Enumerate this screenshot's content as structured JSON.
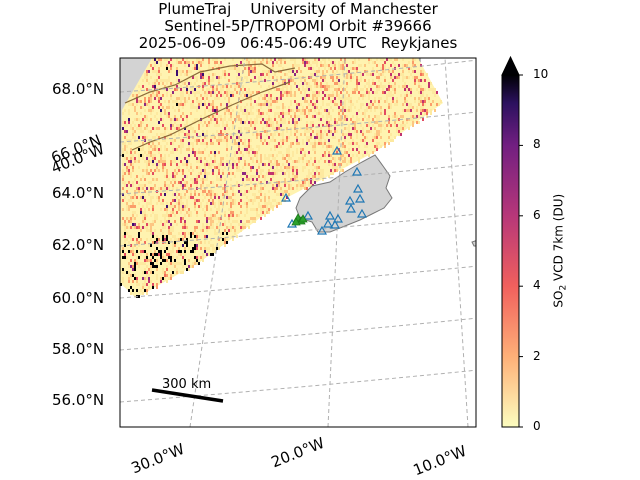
{
  "title": {
    "line1": "PlumeTraj    University of Manchester",
    "line2": "Sentinel-5P/TROPOMI Orbit #39666",
    "line3": "2025-06-09   06:45-06:49 UTC   Reykjanes"
  },
  "lat_labels": [
    "68.0°N",
    "66.0°N",
    "64.0°N",
    "62.0°N",
    "60.0°N",
    "58.0°N",
    "56.0°N"
  ],
  "lon_labels": [
    "40.0°W",
    "30.0°W",
    "20.0°W",
    "10.0°W"
  ],
  "colorbar": {
    "label_main": "SO",
    "label_sub": "2",
    "label_rest": " VCD 7km (DU)",
    "ticks": [
      "10",
      "8",
      "6",
      "4",
      "2",
      "0"
    ],
    "min": 0,
    "max": 10,
    "colormap": "magma_r"
  },
  "scale_bar": {
    "label": "300 km"
  },
  "map_layers": {
    "land_color": "#d3d3d3",
    "coast_color": "#777777",
    "border_color": "#8a6a3a",
    "volcano_marker_color": "#1f77b4",
    "vent_marker_color": "#2ca02c",
    "gridline_color": "#b0b0b0"
  }
}
